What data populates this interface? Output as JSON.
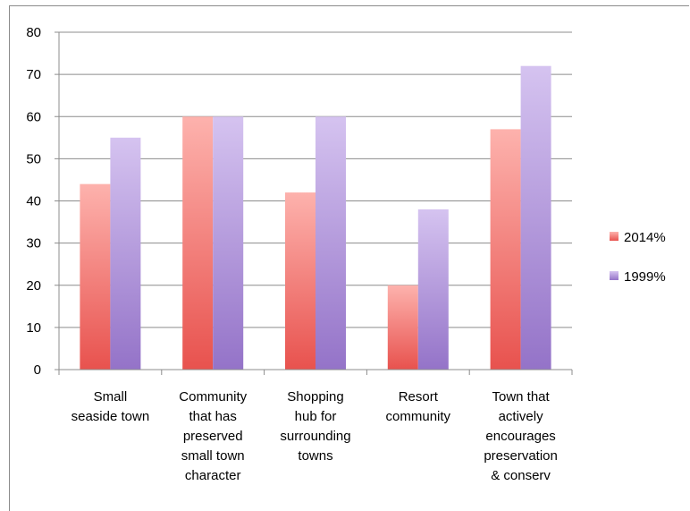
{
  "chart_data": {
    "type": "bar",
    "categories": [
      [
        "Small",
        "seaside town"
      ],
      [
        "Community",
        "that has",
        "preserved",
        "small town",
        "character"
      ],
      [
        "Shopping",
        "hub for",
        "surrounding",
        "towns"
      ],
      [
        "Resort",
        "community"
      ],
      [
        "Town that",
        "actively",
        "encourages",
        "preservation",
        "& conserv"
      ]
    ],
    "series": [
      {
        "name": "2014%",
        "values": [
          44,
          60,
          42,
          20,
          57
        ],
        "color": "#e8524e",
        "color_light": "#fdb2ad"
      },
      {
        "name": "1999%",
        "values": [
          55,
          60,
          60,
          38,
          72
        ],
        "color": "#9473c8",
        "color_light": "#d5c3f0"
      }
    ],
    "ylim": [
      0,
      80
    ],
    "yticks": [
      "0",
      "10",
      "20",
      "30",
      "40",
      "50",
      "60",
      "70",
      "80"
    ],
    "grid": true,
    "legend": "right"
  }
}
